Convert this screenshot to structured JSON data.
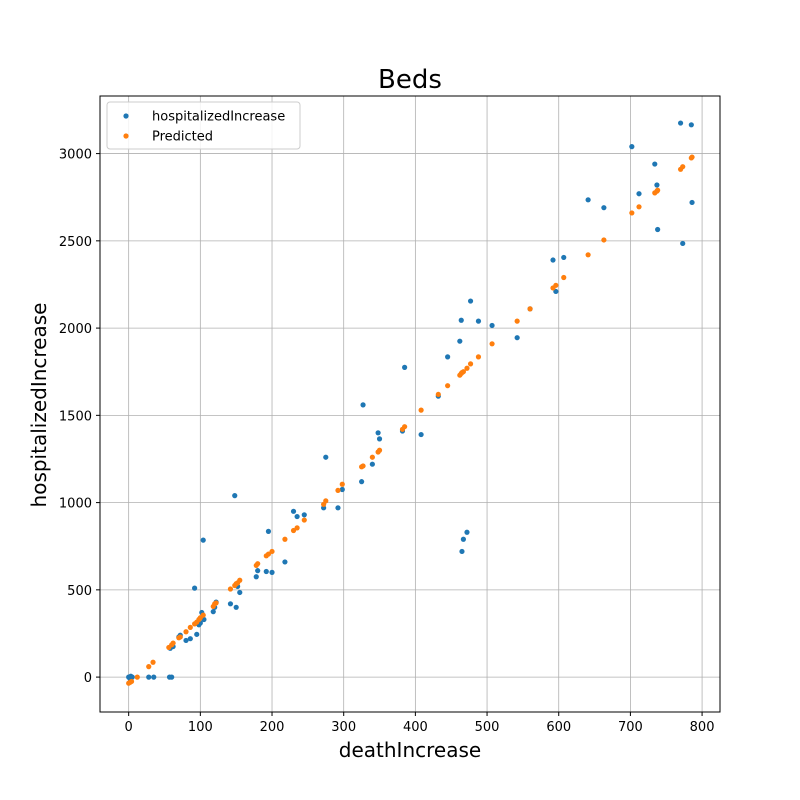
{
  "chart_data": {
    "type": "scatter",
    "title": "Beds",
    "xlabel": "deathIncrease",
    "ylabel": "hospitalizedIncrease",
    "xlim": [
      -40,
      825
    ],
    "ylim": [
      -200,
      3330
    ],
    "xticks": [
      0,
      100,
      200,
      300,
      400,
      500,
      600,
      700,
      800
    ],
    "yticks": [
      0,
      500,
      1000,
      1500,
      2000,
      2500,
      3000
    ],
    "grid": true,
    "legend_position": "top-left",
    "series": [
      {
        "name": "hospitalizedIncrease",
        "color": "#1f77b4",
        "points": [
          [
            0,
            0
          ],
          [
            2,
            -10
          ],
          [
            3,
            5
          ],
          [
            5,
            0
          ],
          [
            28,
            0
          ],
          [
            35,
            0
          ],
          [
            57,
            0
          ],
          [
            60,
            0
          ],
          [
            58,
            165
          ],
          [
            60,
            180
          ],
          [
            62,
            175
          ],
          [
            70,
            230
          ],
          [
            72,
            240
          ],
          [
            80,
            210
          ],
          [
            86,
            220
          ],
          [
            92,
            510
          ],
          [
            95,
            245
          ],
          [
            98,
            300
          ],
          [
            100,
            310
          ],
          [
            102,
            370
          ],
          [
            104,
            785
          ],
          [
            105,
            330
          ],
          [
            118,
            375
          ],
          [
            120,
            400
          ],
          [
            122,
            430
          ],
          [
            142,
            420
          ],
          [
            148,
            1040
          ],
          [
            150,
            400
          ],
          [
            152,
            520
          ],
          [
            155,
            485
          ],
          [
            178,
            575
          ],
          [
            180,
            610
          ],
          [
            192,
            605
          ],
          [
            195,
            835
          ],
          [
            200,
            600
          ],
          [
            218,
            660
          ],
          [
            230,
            950
          ],
          [
            235,
            920
          ],
          [
            245,
            930
          ],
          [
            272,
            970
          ],
          [
            275,
            1260
          ],
          [
            292,
            970
          ],
          [
            298,
            1075
          ],
          [
            325,
            1120
          ],
          [
            327,
            1560
          ],
          [
            340,
            1220
          ],
          [
            348,
            1400
          ],
          [
            350,
            1365
          ],
          [
            382,
            1410
          ],
          [
            385,
            1775
          ],
          [
            408,
            1390
          ],
          [
            432,
            1610
          ],
          [
            445,
            1835
          ],
          [
            462,
            1925
          ],
          [
            464,
            2045
          ],
          [
            465,
            720
          ],
          [
            467,
            790
          ],
          [
            472,
            830
          ],
          [
            477,
            2155
          ],
          [
            488,
            2040
          ],
          [
            507,
            2015
          ],
          [
            542,
            1945
          ],
          [
            560,
            2110
          ],
          [
            592,
            2390
          ],
          [
            596,
            2210
          ],
          [
            607,
            2405
          ],
          [
            641,
            2735
          ],
          [
            663,
            2690
          ],
          [
            702,
            3040
          ],
          [
            712,
            2770
          ],
          [
            734,
            2940
          ],
          [
            737,
            2820
          ],
          [
            738,
            2565
          ],
          [
            770,
            3175
          ],
          [
            773,
            2485
          ],
          [
            785,
            3165
          ],
          [
            786,
            2720
          ]
        ]
      },
      {
        "name": "Predicted",
        "color": "#ff7f0e",
        "points": [
          [
            0,
            -35
          ],
          [
            2,
            -30
          ],
          [
            4,
            -25
          ],
          [
            12,
            0
          ],
          [
            28,
            60
          ],
          [
            34,
            85
          ],
          [
            56,
            170
          ],
          [
            60,
            185
          ],
          [
            62,
            195
          ],
          [
            70,
            225
          ],
          [
            72,
            230
          ],
          [
            80,
            260
          ],
          [
            86,
            285
          ],
          [
            92,
            305
          ],
          [
            95,
            315
          ],
          [
            98,
            330
          ],
          [
            100,
            340
          ],
          [
            104,
            355
          ],
          [
            118,
            405
          ],
          [
            120,
            420
          ],
          [
            122,
            425
          ],
          [
            142,
            505
          ],
          [
            148,
            525
          ],
          [
            150,
            535
          ],
          [
            152,
            540
          ],
          [
            155,
            555
          ],
          [
            178,
            640
          ],
          [
            180,
            650
          ],
          [
            192,
            695
          ],
          [
            195,
            705
          ],
          [
            200,
            720
          ],
          [
            218,
            790
          ],
          [
            230,
            840
          ],
          [
            235,
            855
          ],
          [
            245,
            900
          ],
          [
            272,
            990
          ],
          [
            275,
            1010
          ],
          [
            292,
            1070
          ],
          [
            298,
            1105
          ],
          [
            325,
            1205
          ],
          [
            327,
            1210
          ],
          [
            340,
            1260
          ],
          [
            348,
            1290
          ],
          [
            350,
            1300
          ],
          [
            382,
            1420
          ],
          [
            385,
            1435
          ],
          [
            408,
            1530
          ],
          [
            432,
            1620
          ],
          [
            445,
            1670
          ],
          [
            462,
            1730
          ],
          [
            464,
            1740
          ],
          [
            465,
            1745
          ],
          [
            467,
            1750
          ],
          [
            472,
            1770
          ],
          [
            477,
            1795
          ],
          [
            488,
            1835
          ],
          [
            507,
            1910
          ],
          [
            542,
            2040
          ],
          [
            560,
            2110
          ],
          [
            592,
            2230
          ],
          [
            596,
            2245
          ],
          [
            607,
            2290
          ],
          [
            641,
            2420
          ],
          [
            663,
            2505
          ],
          [
            702,
            2660
          ],
          [
            712,
            2695
          ],
          [
            734,
            2775
          ],
          [
            737,
            2785
          ],
          [
            738,
            2790
          ],
          [
            770,
            2910
          ],
          [
            773,
            2925
          ],
          [
            785,
            2975
          ],
          [
            786,
            2980
          ]
        ]
      }
    ]
  }
}
